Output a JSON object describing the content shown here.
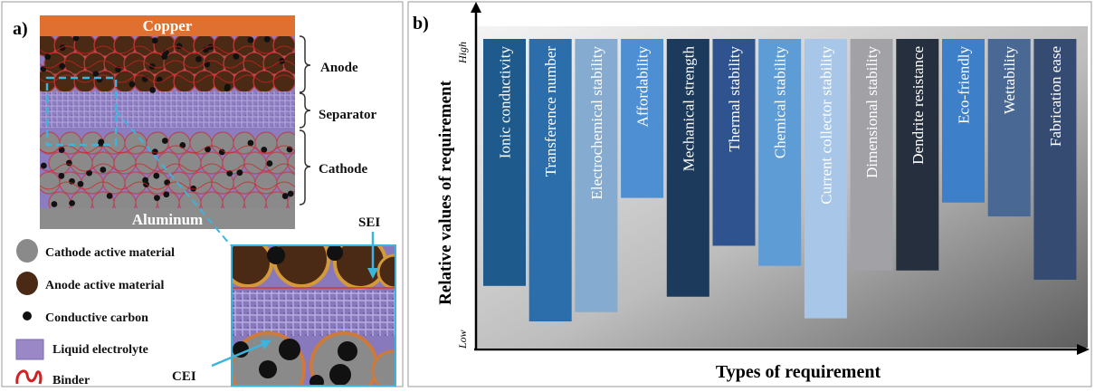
{
  "panel_a": {
    "label": "a)",
    "top_collector": "Copper",
    "bottom_collector": "Aluminum",
    "layers": [
      "Anode",
      "Separator",
      "Cathode"
    ],
    "zoom_labels": {
      "sei": "SEI",
      "cei": "CEI"
    },
    "legend": [
      {
        "label": "Cathode active material",
        "icon": "cathode-particle-icon",
        "color": "#8a8a8a"
      },
      {
        "label": "Anode active material",
        "icon": "anode-particle-icon",
        "color": "#4a2a14"
      },
      {
        "label": "Conductive carbon",
        "icon": "carbon-dot-icon",
        "color": "#111111"
      },
      {
        "label": "Liquid electrolyte",
        "icon": "electrolyte-swatch-icon",
        "color": "#9a88c6"
      },
      {
        "label": "Binder",
        "icon": "binder-squiggle-icon",
        "color": "#d42020"
      }
    ],
    "colors": {
      "copper": "#e07030",
      "aluminum": "#8c8c8c",
      "electrolyte": "#8c7cc0",
      "zoom_frame": "#3cb4dc"
    }
  },
  "panel_b": {
    "label": "b)",
    "y_axis_title": "Relative values of requirement",
    "y_high": "High",
    "y_low": "Low",
    "x_axis_title": "Types of requirement",
    "requirements": [
      {
        "label": "Ionic conductivity",
        "value": 0.8,
        "color": "#1e5a8c"
      },
      {
        "label": "Transference number",
        "value": 0.915,
        "color": "#2c6eac"
      },
      {
        "label": "Electrochemical stability",
        "value": 0.885,
        "color": "#86abd0"
      },
      {
        "label": "Affordability",
        "value": 0.515,
        "color": "#4d8fd2"
      },
      {
        "label": "Mechanical strength",
        "value": 0.835,
        "color": "#1b3a5c"
      },
      {
        "label": "Thermal stability",
        "value": 0.67,
        "color": "#2e538f"
      },
      {
        "label": "Chemical stability",
        "value": 0.735,
        "color": "#5e9cd6"
      },
      {
        "label": "Current collector stability",
        "value": 0.905,
        "color": "#a8c6e8"
      },
      {
        "label": "Dimensional stability",
        "value": 0.75,
        "color": "#a2a2a6"
      },
      {
        "label": "Dendrite resistance",
        "value": 0.75,
        "color": "#252f3d"
      },
      {
        "label": "Eco-friendly",
        "value": 0.53,
        "color": "#3d7fc8"
      },
      {
        "label": "Wettability",
        "value": 0.575,
        "color": "#4a6894"
      },
      {
        "label": "Fabrication ease",
        "value": 0.78,
        "color": "#354b72"
      }
    ]
  }
}
